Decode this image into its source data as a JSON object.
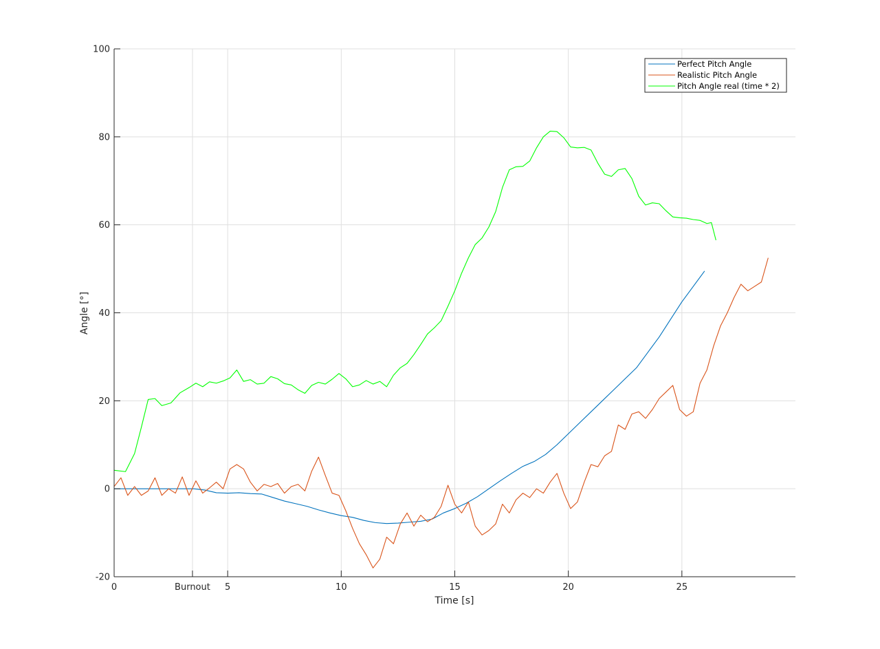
{
  "chart_data": {
    "type": "line",
    "title": "",
    "xlabel": "Time [s]",
    "ylabel": "Angle [°]",
    "xlim": [
      0,
      30
    ],
    "ylim": [
      -20,
      100
    ],
    "grid": true,
    "legend_position": "top-right",
    "x_ticks": [
      {
        "value": 0,
        "label": "0"
      },
      {
        "value": 3.45,
        "label": "Burnout"
      },
      {
        "value": 5,
        "label": "5"
      },
      {
        "value": 10,
        "label": "10"
      },
      {
        "value": 15,
        "label": "15"
      },
      {
        "value": 20,
        "label": "20"
      },
      {
        "value": 25,
        "label": "25"
      }
    ],
    "y_ticks": [
      {
        "value": -20,
        "label": "-20"
      },
      {
        "value": 0,
        "label": "0"
      },
      {
        "value": 20,
        "label": "20"
      },
      {
        "value": 40,
        "label": "40"
      },
      {
        "value": 60,
        "label": "60"
      },
      {
        "value": 80,
        "label": "80"
      },
      {
        "value": 100,
        "label": "100"
      }
    ],
    "series": [
      {
        "name": "Perfect Pitch Angle",
        "color": "#0072BD",
        "points": [
          [
            0,
            0
          ],
          [
            1,
            0
          ],
          [
            2,
            0
          ],
          [
            3,
            0
          ],
          [
            3.5,
            0
          ],
          [
            4,
            -0.3
          ],
          [
            4.5,
            -0.9
          ],
          [
            5,
            -1.0
          ],
          [
            5.5,
            -0.9
          ],
          [
            6,
            -1.1
          ],
          [
            6.5,
            -1.2
          ],
          [
            7,
            -2.0
          ],
          [
            7.5,
            -2.8
          ],
          [
            8,
            -3.4
          ],
          [
            8.5,
            -4.0
          ],
          [
            9,
            -4.8
          ],
          [
            9.5,
            -5.5
          ],
          [
            10,
            -6.1
          ],
          [
            10.5,
            -6.5
          ],
          [
            11,
            -7.2
          ],
          [
            11.5,
            -7.7
          ],
          [
            12,
            -7.9
          ],
          [
            12.5,
            -7.8
          ],
          [
            13,
            -7.6
          ],
          [
            13.5,
            -7.4
          ],
          [
            14,
            -6.9
          ],
          [
            14.5,
            -5.5
          ],
          [
            15,
            -4.5
          ],
          [
            15.5,
            -3.3
          ],
          [
            16,
            -1.8
          ],
          [
            16.5,
            0.0
          ],
          [
            17,
            1.8
          ],
          [
            17.5,
            3.5
          ],
          [
            18,
            5.1
          ],
          [
            18.5,
            6.2
          ],
          [
            19,
            7.8
          ],
          [
            19.5,
            10.0
          ],
          [
            20,
            12.5
          ],
          [
            20.5,
            15.0
          ],
          [
            21,
            17.5
          ],
          [
            21.5,
            20.0
          ],
          [
            22,
            22.5
          ],
          [
            22.5,
            25.0
          ],
          [
            23,
            27.5
          ],
          [
            23.5,
            31.0
          ],
          [
            24,
            34.5
          ],
          [
            24.5,
            38.5
          ],
          [
            25,
            42.5
          ],
          [
            25.5,
            46.0
          ],
          [
            26,
            49.5
          ]
        ]
      },
      {
        "name": "Realistic Pitch Angle",
        "color": "#D95319",
        "points": [
          [
            0,
            0.5
          ],
          [
            0.3,
            2.5
          ],
          [
            0.6,
            -1.5
          ],
          [
            0.9,
            0.5
          ],
          [
            1.2,
            -1.5
          ],
          [
            1.5,
            -0.5
          ],
          [
            1.8,
            2.5
          ],
          [
            2.1,
            -1.5
          ],
          [
            2.4,
            0.0
          ],
          [
            2.7,
            -1.0
          ],
          [
            3.0,
            2.7
          ],
          [
            3.3,
            -1.5
          ],
          [
            3.6,
            1.8
          ],
          [
            3.9,
            -1.0
          ],
          [
            4.2,
            0.2
          ],
          [
            4.5,
            1.5
          ],
          [
            4.8,
            0.0
          ],
          [
            5.1,
            4.5
          ],
          [
            5.4,
            5.5
          ],
          [
            5.7,
            4.5
          ],
          [
            6.0,
            1.5
          ],
          [
            6.3,
            -0.5
          ],
          [
            6.6,
            1.0
          ],
          [
            6.9,
            0.5
          ],
          [
            7.2,
            1.2
          ],
          [
            7.5,
            -1.0
          ],
          [
            7.8,
            0.5
          ],
          [
            8.1,
            1.0
          ],
          [
            8.4,
            -0.5
          ],
          [
            8.7,
            4.0
          ],
          [
            9.0,
            7.2
          ],
          [
            9.3,
            3.0
          ],
          [
            9.6,
            -1.0
          ],
          [
            9.9,
            -1.5
          ],
          [
            10.2,
            -5.0
          ],
          [
            10.5,
            -9.0
          ],
          [
            10.8,
            -12.5
          ],
          [
            11.1,
            -15.0
          ],
          [
            11.4,
            -18.0
          ],
          [
            11.7,
            -16.0
          ],
          [
            12.0,
            -11.0
          ],
          [
            12.3,
            -12.5
          ],
          [
            12.6,
            -8.0
          ],
          [
            12.9,
            -5.5
          ],
          [
            13.2,
            -8.5
          ],
          [
            13.5,
            -6.0
          ],
          [
            13.8,
            -7.5
          ],
          [
            14.1,
            -6.5
          ],
          [
            14.4,
            -4.0
          ],
          [
            14.7,
            0.8
          ],
          [
            15.0,
            -3.5
          ],
          [
            15.3,
            -5.5
          ],
          [
            15.6,
            -3.0
          ],
          [
            15.9,
            -8.5
          ],
          [
            16.2,
            -10.5
          ],
          [
            16.5,
            -9.5
          ],
          [
            16.8,
            -8.0
          ],
          [
            17.1,
            -3.5
          ],
          [
            17.4,
            -5.5
          ],
          [
            17.7,
            -2.5
          ],
          [
            18.0,
            -1.0
          ],
          [
            18.3,
            -2.0
          ],
          [
            18.6,
            0.0
          ],
          [
            18.9,
            -1.0
          ],
          [
            19.2,
            1.5
          ],
          [
            19.5,
            3.5
          ],
          [
            19.8,
            -1.0
          ],
          [
            20.1,
            -4.5
          ],
          [
            20.4,
            -3.0
          ],
          [
            20.7,
            1.5
          ],
          [
            21.0,
            5.5
          ],
          [
            21.3,
            5.0
          ],
          [
            21.6,
            7.5
          ],
          [
            21.9,
            8.5
          ],
          [
            22.2,
            14.5
          ],
          [
            22.5,
            13.5
          ],
          [
            22.8,
            17.0
          ],
          [
            23.1,
            17.5
          ],
          [
            23.4,
            16.0
          ],
          [
            23.7,
            18.0
          ],
          [
            24.0,
            20.5
          ],
          [
            24.3,
            22.0
          ],
          [
            24.6,
            23.5
          ],
          [
            24.9,
            18.0
          ],
          [
            25.2,
            16.5
          ],
          [
            25.5,
            17.5
          ],
          [
            25.8,
            24.0
          ],
          [
            26.1,
            27.0
          ],
          [
            26.4,
            32.5
          ],
          [
            26.7,
            37.0
          ],
          [
            27.0,
            40.0
          ],
          [
            27.3,
            43.5
          ],
          [
            27.6,
            46.5
          ],
          [
            27.9,
            45.0
          ],
          [
            28.2,
            46.0
          ],
          [
            28.5,
            47.0
          ],
          [
            28.8,
            52.5
          ]
        ]
      },
      {
        "name": "Pitch Angle real (time * 2)",
        "color": "#00FF00",
        "points": [
          [
            0,
            4.2
          ],
          [
            0.5,
            3.9
          ],
          [
            0.9,
            8.0
          ],
          [
            1.2,
            14.0
          ],
          [
            1.5,
            20.3
          ],
          [
            1.8,
            20.5
          ],
          [
            2.1,
            18.9
          ],
          [
            2.5,
            19.5
          ],
          [
            2.9,
            21.8
          ],
          [
            3.3,
            23.0
          ],
          [
            3.6,
            24.0
          ],
          [
            3.9,
            23.2
          ],
          [
            4.2,
            24.3
          ],
          [
            4.5,
            24.0
          ],
          [
            4.8,
            24.5
          ],
          [
            5.1,
            25.2
          ],
          [
            5.4,
            27.0
          ],
          [
            5.7,
            24.4
          ],
          [
            6.0,
            24.8
          ],
          [
            6.3,
            23.8
          ],
          [
            6.6,
            24.0
          ],
          [
            6.9,
            25.5
          ],
          [
            7.2,
            25.0
          ],
          [
            7.5,
            23.9
          ],
          [
            7.8,
            23.6
          ],
          [
            8.1,
            22.5
          ],
          [
            8.4,
            21.7
          ],
          [
            8.7,
            23.5
          ],
          [
            9.0,
            24.2
          ],
          [
            9.3,
            23.8
          ],
          [
            9.6,
            24.9
          ],
          [
            9.9,
            26.2
          ],
          [
            10.2,
            25.0
          ],
          [
            10.5,
            23.2
          ],
          [
            10.8,
            23.6
          ],
          [
            11.1,
            24.6
          ],
          [
            11.4,
            23.8
          ],
          [
            11.7,
            24.4
          ],
          [
            12.0,
            23.2
          ],
          [
            12.3,
            25.8
          ],
          [
            12.6,
            27.5
          ],
          [
            12.9,
            28.5
          ],
          [
            13.2,
            30.5
          ],
          [
            13.5,
            32.8
          ],
          [
            13.8,
            35.2
          ],
          [
            14.1,
            36.6
          ],
          [
            14.4,
            38.2
          ],
          [
            14.7,
            41.5
          ],
          [
            15.0,
            45.0
          ],
          [
            15.3,
            49.0
          ],
          [
            15.6,
            52.5
          ],
          [
            15.9,
            55.5
          ],
          [
            16.2,
            57.0
          ],
          [
            16.5,
            59.5
          ],
          [
            16.8,
            63.0
          ],
          [
            17.1,
            68.5
          ],
          [
            17.4,
            72.5
          ],
          [
            17.7,
            73.2
          ],
          [
            18.0,
            73.3
          ],
          [
            18.3,
            74.5
          ],
          [
            18.6,
            77.5
          ],
          [
            18.9,
            80.0
          ],
          [
            19.2,
            81.3
          ],
          [
            19.5,
            81.2
          ],
          [
            19.8,
            79.8
          ],
          [
            20.1,
            77.7
          ],
          [
            20.4,
            77.5
          ],
          [
            20.7,
            77.6
          ],
          [
            21.0,
            77.0
          ],
          [
            21.3,
            74.0
          ],
          [
            21.6,
            71.5
          ],
          [
            21.9,
            71.0
          ],
          [
            22.2,
            72.5
          ],
          [
            22.5,
            72.8
          ],
          [
            22.8,
            70.5
          ],
          [
            23.1,
            66.5
          ],
          [
            23.4,
            64.5
          ],
          [
            23.7,
            65.0
          ],
          [
            24.0,
            64.8
          ],
          [
            24.3,
            63.2
          ],
          [
            24.6,
            61.8
          ],
          [
            24.9,
            61.6
          ],
          [
            25.2,
            61.5
          ],
          [
            25.5,
            61.2
          ],
          [
            25.8,
            61.0
          ],
          [
            26.1,
            60.3
          ],
          [
            26.3,
            60.5
          ],
          [
            26.5,
            56.5
          ]
        ]
      }
    ]
  }
}
